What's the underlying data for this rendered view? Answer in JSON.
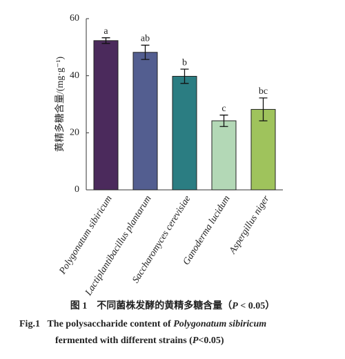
{
  "chart_data": {
    "type": "bar",
    "ylabel": "黄精多糖含量/(mg·g⁻¹)",
    "categories": [
      "Polygonatum sibiricum",
      "Lactiplantibacillus plantarum",
      "Saccharomyces cerevisiae",
      "Ganoderma lucidum",
      "Aspergillus niger"
    ],
    "values": [
      52.3,
      48.2,
      39.8,
      24.2,
      28.2
    ],
    "errors": [
      1.0,
      2.5,
      2.5,
      2.0,
      4.0
    ],
    "significance": [
      "a",
      "ab",
      "b",
      "c",
      "bc"
    ],
    "colors": [
      "#4b2a5c",
      "#535e90",
      "#2b7d82",
      "#b3d8b6",
      "#9fc35c"
    ],
    "ylim": [
      0,
      60
    ],
    "yticks": [
      0,
      20,
      40,
      60
    ],
    "caption": {
      "cn_label": "图 1",
      "cn_text": "不同菌株发酵的黄精多糖含量（",
      "cn_p": "P",
      "cn_rest": " < 0.05）",
      "en_label": "Fig.1",
      "en_text": "The polysaccharide content of ",
      "en_species": "Polygonatum sibiricum",
      "en_line2": "fermented with different strains (",
      "en_p": "P",
      "en_rest": "<0.05)"
    }
  }
}
